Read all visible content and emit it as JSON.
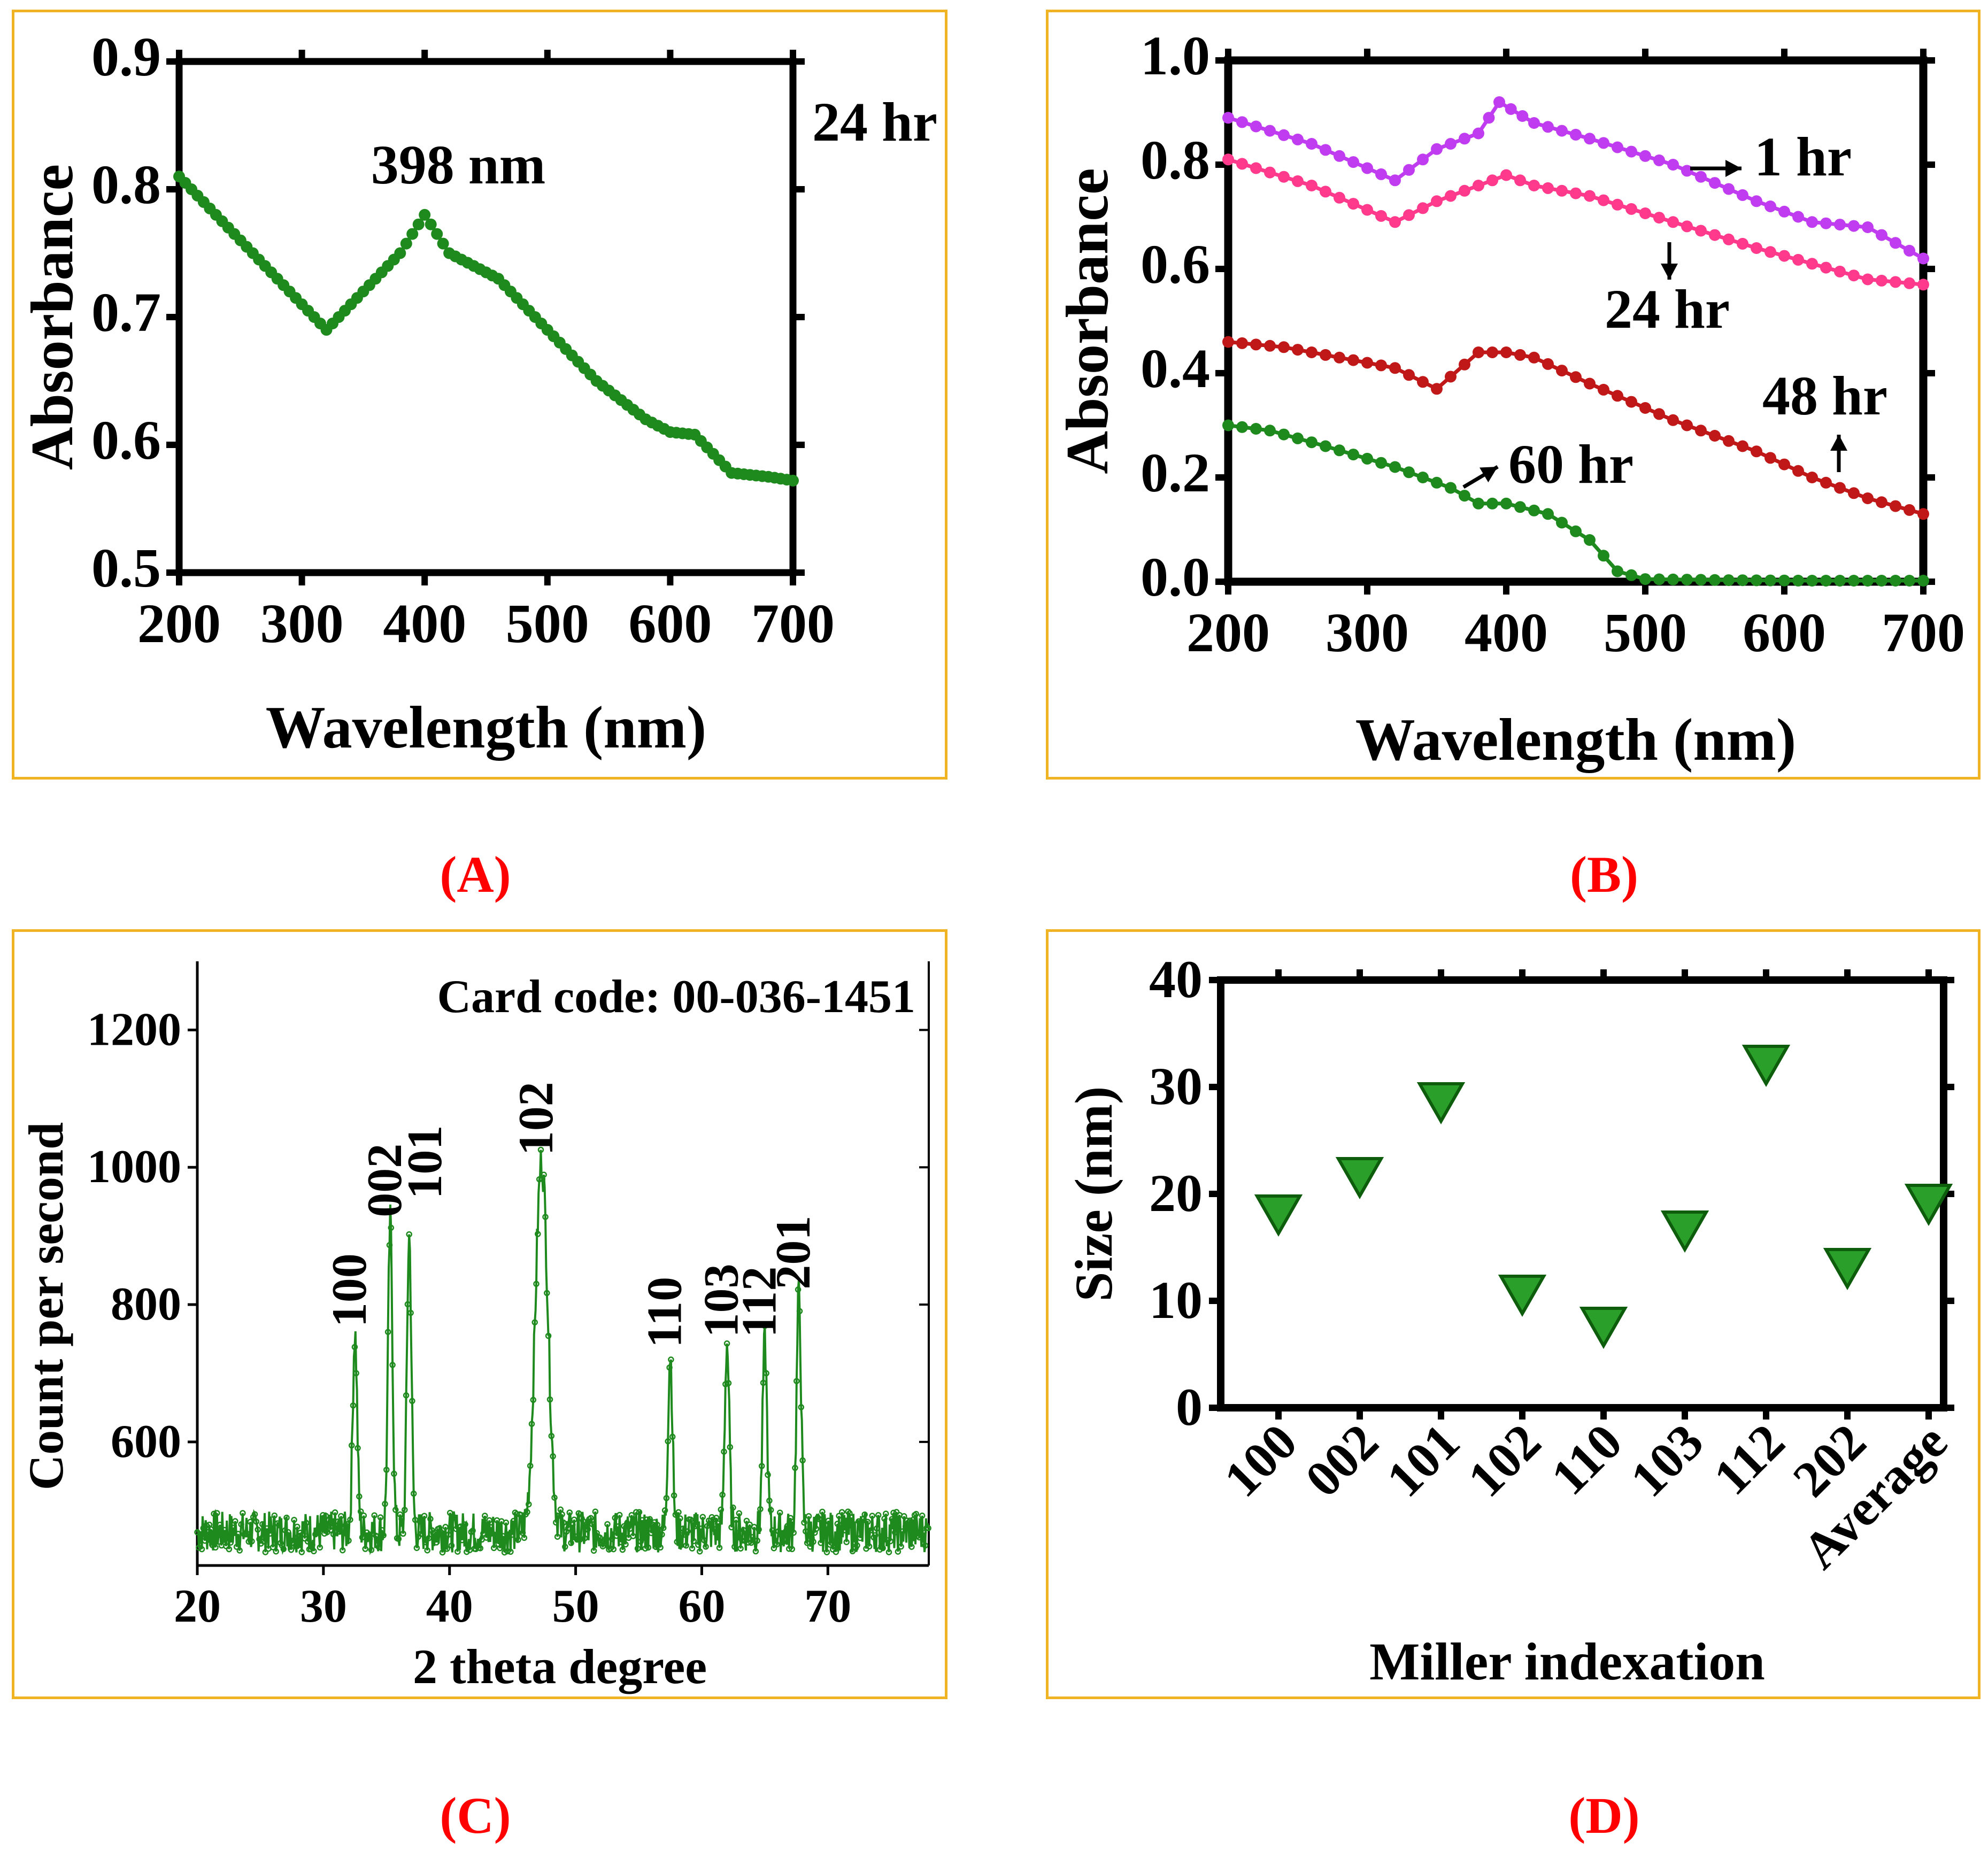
{
  "labels": {
    "a": "(A)",
    "b": "(B)",
    "c": "(C)",
    "d": "(D)"
  },
  "chart_data": [
    {
      "id": "A",
      "type": "line",
      "xlabel": "Wavelength (nm)",
      "ylabel": "Absorbance",
      "xlim": [
        200,
        700
      ],
      "ylim": [
        0.5,
        0.9
      ],
      "xticks": [
        200,
        300,
        400,
        500,
        600,
        700
      ],
      "yticks": [
        0.5,
        0.6,
        0.7,
        0.8,
        0.9
      ],
      "ytick_labels": [
        "0.5",
        "0.6",
        "0.7",
        "0.8",
        "0.9"
      ],
      "annotations": [
        "398 nm",
        "24 hr"
      ],
      "color": "#1e8a1e",
      "series": [
        {
          "name": "24 hr",
          "x": [
            200,
            240,
            280,
            320,
            350,
            380,
            400,
            420,
            440,
            460,
            500,
            540,
            580,
            600,
            620,
            650,
            680,
            700
          ],
          "y": [
            0.81,
            0.77,
            0.73,
            0.69,
            0.72,
            0.75,
            0.78,
            0.75,
            0.74,
            0.73,
            0.69,
            0.65,
            0.62,
            0.61,
            0.608,
            0.578,
            0.575,
            0.572
          ]
        }
      ]
    },
    {
      "id": "B",
      "type": "line",
      "xlabel": "Wavelength (nm)",
      "ylabel": "Absorbance",
      "xlim": [
        200,
        700
      ],
      "ylim": [
        0.0,
        1.0
      ],
      "xticks": [
        200,
        300,
        400,
        500,
        600,
        700
      ],
      "yticks": [
        0.0,
        0.2,
        0.4,
        0.6,
        0.8,
        1.0
      ],
      "ytick_labels": [
        "0.0",
        "0.2",
        "0.4",
        "0.6",
        "0.8",
        "1.0"
      ],
      "series": [
        {
          "name": "1 hr",
          "color": "#c03cf0",
          "x": [
            200,
            260,
            320,
            350,
            380,
            395,
            420,
            460,
            520,
            580,
            620,
            660,
            700
          ],
          "y": [
            0.89,
            0.84,
            0.77,
            0.83,
            0.86,
            0.92,
            0.88,
            0.85,
            0.8,
            0.73,
            0.69,
            0.68,
            0.62
          ]
        },
        {
          "name": "24 hr",
          "color": "#ff3a8c",
          "x": [
            200,
            260,
            320,
            350,
            380,
            400,
            420,
            460,
            520,
            580,
            620,
            660,
            700
          ],
          "y": [
            0.81,
            0.76,
            0.69,
            0.73,
            0.76,
            0.78,
            0.76,
            0.74,
            0.69,
            0.64,
            0.61,
            0.58,
            0.57
          ]
        },
        {
          "name": "48 hr",
          "color": "#c01818",
          "x": [
            200,
            240,
            280,
            320,
            350,
            380,
            400,
            420,
            460,
            520,
            580,
            620,
            660,
            700
          ],
          "y": [
            0.46,
            0.45,
            0.43,
            0.41,
            0.37,
            0.44,
            0.44,
            0.43,
            0.38,
            0.31,
            0.25,
            0.2,
            0.16,
            0.13
          ]
        },
        {
          "name": "60 hr",
          "color": "#1e8a1e",
          "x": [
            200,
            230,
            270,
            320,
            360,
            380,
            400,
            430,
            460,
            480,
            500,
            560,
            620,
            700
          ],
          "y": [
            0.3,
            0.29,
            0.26,
            0.22,
            0.18,
            0.15,
            0.15,
            0.13,
            0.08,
            0.02,
            0.005,
            0.003,
            0.002,
            0.002
          ]
        }
      ]
    },
    {
      "id": "C",
      "type": "line",
      "xlabel": "2 theta degree",
      "ylabel": "Count per second",
      "xlim": [
        20,
        78
      ],
      "ylim": [
        420,
        1300
      ],
      "xticks": [
        20,
        30,
        40,
        50,
        60,
        70
      ],
      "yticks": [
        600,
        800,
        1000,
        1200
      ],
      "annotation": "Card code: 00-036-1451",
      "color": "#1e8a1e",
      "baseline": 460,
      "peaks": [
        {
          "x": 32.5,
          "y": 750,
          "label": "100"
        },
        {
          "x": 35.3,
          "y": 910,
          "label": "002"
        },
        {
          "x": 36.8,
          "y": 890,
          "label": "101"
        },
        {
          "x": 47.3,
          "y": 1000,
          "label": "102"
        },
        {
          "x": 57.5,
          "y": 720,
          "label": "110"
        },
        {
          "x": 62.0,
          "y": 735,
          "label": "103"
        },
        {
          "x": 65.0,
          "y": 735,
          "label": "112"
        },
        {
          "x": 67.7,
          "y": 805,
          "label": "201"
        }
      ]
    },
    {
      "id": "D",
      "type": "scatter",
      "xlabel": "Miller indexation",
      "ylabel": "Size (nm)",
      "ylim": [
        0,
        40
      ],
      "yticks": [
        0,
        10,
        20,
        30,
        40
      ],
      "categories": [
        "100",
        "002",
        "101",
        "102",
        "110",
        "103",
        "112",
        "202",
        "Average"
      ],
      "values": [
        18,
        21.5,
        28.5,
        10.5,
        7.5,
        16.5,
        32,
        13,
        19
      ],
      "color": "#2aa02a"
    }
  ]
}
